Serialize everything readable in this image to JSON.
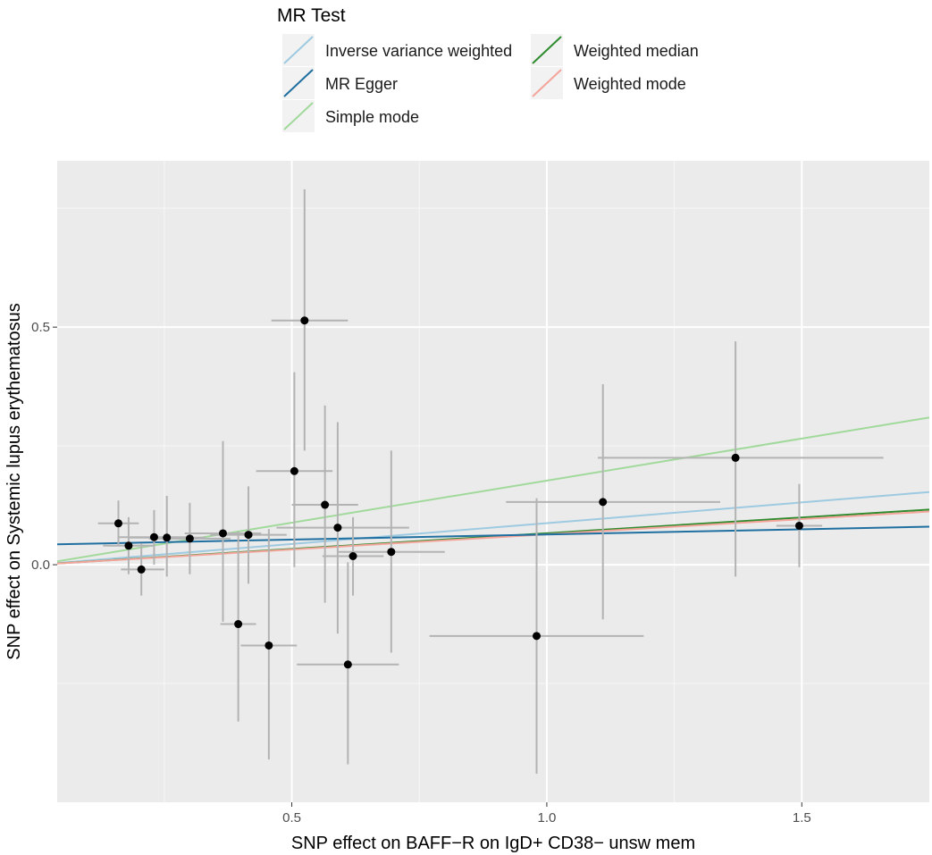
{
  "chart_data": {
    "type": "scatter",
    "title": "",
    "xlabel": "SNP effect on BAFF−R on IgD+ CD38− unsw mem",
    "ylabel": "SNP effect on Systemic lupus erythematosus",
    "xlim": [
      0.04,
      1.75
    ],
    "ylim": [
      -0.5,
      0.85
    ],
    "x_ticks": [
      0.5,
      1.0,
      1.5
    ],
    "x_tick_labels": [
      "0.5",
      "1.0",
      "1.5"
    ],
    "y_ticks": [
      0.0,
      0.5
    ],
    "y_tick_labels": [
      "0.0",
      "0.5"
    ],
    "x_minor": [
      0.25,
      0.75,
      1.25
    ],
    "y_minor": [
      -0.25,
      0.25,
      0.75
    ],
    "grid": true,
    "legend": {
      "title": "MR Test",
      "position": "top",
      "entries": [
        {
          "name": "Inverse variance weighted",
          "color": "#9ecae1"
        },
        {
          "name": "MR Egger",
          "color": "#1f6fa0"
        },
        {
          "name": "Simple mode",
          "color": "#a1d99b"
        },
        {
          "name": "Weighted median",
          "color": "#2e8b2e"
        },
        {
          "name": "Weighted mode",
          "color": "#f4a49a"
        }
      ]
    },
    "lines": [
      {
        "name": "Simple mode",
        "color": "#a1d99b",
        "intercept": 0.0,
        "slope": 0.177
      },
      {
        "name": "Inverse variance weighted",
        "color": "#9ecae1",
        "intercept": 0.0,
        "slope": 0.0874
      },
      {
        "name": "Weighted median",
        "color": "#2e8b2e",
        "intercept": 0.0,
        "slope": 0.0663
      },
      {
        "name": "Weighted mode",
        "color": "#f4a49a",
        "intercept": 0.0,
        "slope": 0.064
      },
      {
        "name": "MR Egger",
        "color": "#1f6fa0",
        "intercept": 0.042,
        "slope": 0.0217
      }
    ],
    "points": [
      {
        "x": 0.16,
        "y": 0.087,
        "x_lo": 0.12,
        "x_hi": 0.2,
        "y_lo": 0.04,
        "y_hi": 0.135
      },
      {
        "x": 0.18,
        "y": 0.04,
        "x_lo": 0.13,
        "x_hi": 0.23,
        "y_lo": -0.02,
        "y_hi": 0.1
      },
      {
        "x": 0.205,
        "y": -0.01,
        "x_lo": 0.165,
        "x_hi": 0.25,
        "y_lo": -0.065,
        "y_hi": 0.045
      },
      {
        "x": 0.23,
        "y": 0.058,
        "x_lo": 0.16,
        "x_hi": 0.3,
        "y_lo": 0.0,
        "y_hi": 0.115
      },
      {
        "x": 0.255,
        "y": 0.057,
        "x_lo": 0.18,
        "x_hi": 0.33,
        "y_lo": -0.025,
        "y_hi": 0.145
      },
      {
        "x": 0.3,
        "y": 0.055,
        "x_lo": 0.22,
        "x_hi": 0.38,
        "y_lo": -0.02,
        "y_hi": 0.13
      },
      {
        "x": 0.365,
        "y": 0.066,
        "x_lo": 0.29,
        "x_hi": 0.44,
        "y_lo": -0.12,
        "y_hi": 0.26
      },
      {
        "x": 0.395,
        "y": -0.125,
        "x_lo": 0.36,
        "x_hi": 0.43,
        "y_lo": -0.33,
        "y_hi": 0.07
      },
      {
        "x": 0.415,
        "y": 0.063,
        "x_lo": 0.34,
        "x_hi": 0.49,
        "y_lo": -0.04,
        "y_hi": 0.165
      },
      {
        "x": 0.455,
        "y": -0.17,
        "x_lo": 0.4,
        "x_hi": 0.51,
        "y_lo": -0.41,
        "y_hi": 0.075
      },
      {
        "x": 0.505,
        "y": 0.197,
        "x_lo": 0.43,
        "x_hi": 0.58,
        "y_lo": -0.005,
        "y_hi": 0.405
      },
      {
        "x": 0.525,
        "y": 0.514,
        "x_lo": 0.46,
        "x_hi": 0.61,
        "y_lo": 0.24,
        "y_hi": 0.79
      },
      {
        "x": 0.565,
        "y": 0.126,
        "x_lo": 0.5,
        "x_hi": 0.63,
        "y_lo": -0.08,
        "y_hi": 0.335
      },
      {
        "x": 0.59,
        "y": 0.078,
        "x_lo": 0.47,
        "x_hi": 0.73,
        "y_lo": -0.145,
        "y_hi": 0.3
      },
      {
        "x": 0.61,
        "y": -0.21,
        "x_lo": 0.51,
        "x_hi": 0.71,
        "y_lo": -0.42,
        "y_hi": 0.005
      },
      {
        "x": 0.62,
        "y": 0.018,
        "x_lo": 0.56,
        "x_hi": 0.68,
        "y_lo": -0.065,
        "y_hi": 0.1
      },
      {
        "x": 0.695,
        "y": 0.027,
        "x_lo": 0.59,
        "x_hi": 0.8,
        "y_lo": -0.185,
        "y_hi": 0.24
      },
      {
        "x": 0.98,
        "y": -0.15,
        "x_lo": 0.77,
        "x_hi": 1.19,
        "y_lo": -0.44,
        "y_hi": 0.14
      },
      {
        "x": 1.11,
        "y": 0.132,
        "x_lo": 0.92,
        "x_hi": 1.34,
        "y_lo": -0.115,
        "y_hi": 0.38
      },
      {
        "x": 1.37,
        "y": 0.225,
        "x_lo": 1.1,
        "x_hi": 1.66,
        "y_lo": -0.025,
        "y_hi": 0.47
      },
      {
        "x": 1.495,
        "y": 0.082,
        "x_lo": 1.45,
        "x_hi": 1.54,
        "y_lo": -0.005,
        "y_hi": 0.17
      }
    ]
  }
}
